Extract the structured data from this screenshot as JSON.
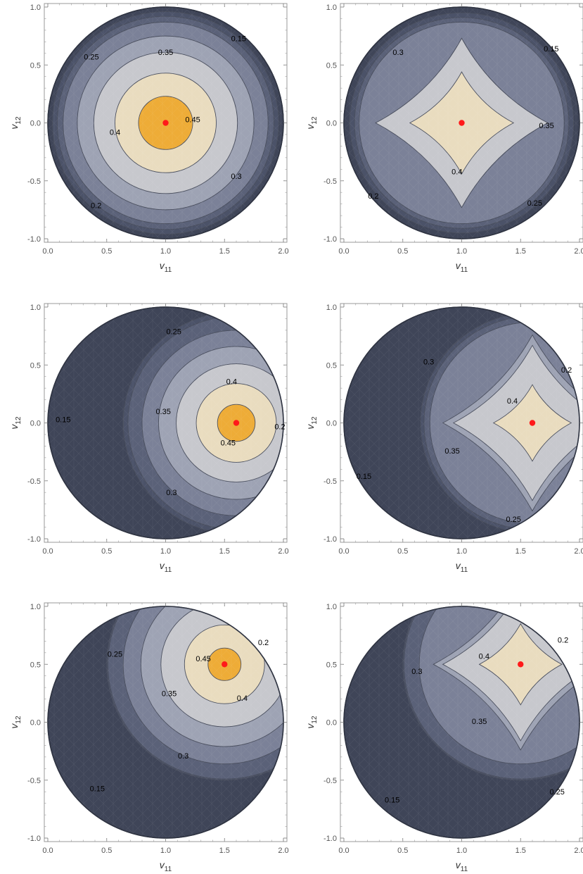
{
  "chart_data": [
    {
      "type": "contour",
      "panel": "top-left",
      "shape": "round",
      "xlabel": "v11",
      "ylabel": "v12",
      "xlim": [
        0,
        2
      ],
      "ylim": [
        -1,
        1
      ],
      "xticks": [
        "0.0",
        "0.5",
        "1.0",
        "1.5",
        "2.0"
      ],
      "yticks": [
        "-1.0",
        "-0.5",
        "0.0",
        "0.5",
        "1.0"
      ],
      "peak": {
        "x": 1.0,
        "y": 0.0
      },
      "levels": [
        {
          "value": 0.15,
          "label": "0.15",
          "r": 0.96,
          "lx": 1.62,
          "ly": 0.73
        },
        {
          "value": 0.2,
          "label": "0.2",
          "r": 0.92,
          "lx": 0.41,
          "ly": -0.71
        },
        {
          "value": 0.25,
          "label": "0.25",
          "r": 0.87,
          "lx": 0.37,
          "ly": 0.57
        },
        {
          "value": 0.3,
          "label": "0.3",
          "r": 0.75,
          "lx": 1.6,
          "ly": -0.46
        },
        {
          "value": 0.35,
          "label": "0.35",
          "r": 0.61,
          "lx": 1.0,
          "ly": 0.61
        },
        {
          "value": 0.4,
          "label": "0.4",
          "r": 0.43,
          "lx": 0.57,
          "ly": -0.08
        },
        {
          "value": 0.45,
          "label": "0.45",
          "r": 0.23,
          "lx": 1.23,
          "ly": 0.03
        }
      ]
    },
    {
      "type": "contour",
      "panel": "top-right",
      "shape": "diamond",
      "xlabel": "v11",
      "ylabel": "v12",
      "xlim": [
        0,
        2
      ],
      "ylim": [
        -1,
        1
      ],
      "xticks": [
        "0.0",
        "0.5",
        "1.0",
        "1.5",
        "2.0"
      ],
      "yticks": [
        "-1.0",
        "-0.5",
        "0.0",
        "0.5",
        "1.0"
      ],
      "peak": {
        "x": 1.0,
        "y": 0.0
      },
      "levels": [
        {
          "value": 0.15,
          "label": "0.15",
          "r": 0.95,
          "lx": 1.76,
          "ly": 0.64
        },
        {
          "value": 0.2,
          "label": "0.2",
          "r": 0.91,
          "lx": 0.25,
          "ly": -0.63
        },
        {
          "value": 0.25,
          "label": "0.25",
          "r": 0.87,
          "lx": 1.62,
          "ly": -0.69
        },
        {
          "value": 0.3,
          "label": "0.3",
          "r": 0.73,
          "lx": 0.46,
          "ly": 0.61
        },
        {
          "value": 0.35,
          "label": "0.35",
          "r": 0.73,
          "lx": 1.72,
          "ly": -0.02
        },
        {
          "value": 0.4,
          "label": "0.4",
          "r": 0.44,
          "lx": 0.96,
          "ly": -0.42
        }
      ]
    },
    {
      "type": "contour",
      "panel": "middle-left",
      "shape": "round",
      "xlabel": "v11",
      "ylabel": "v12",
      "xlim": [
        0,
        2
      ],
      "ylim": [
        -1,
        1
      ],
      "xticks": [
        "0.0",
        "0.5",
        "1.0",
        "1.5",
        "2.0"
      ],
      "yticks": [
        "-1.0",
        "-0.5",
        "0.0",
        "0.5",
        "1.0"
      ],
      "peak": {
        "x": 1.6,
        "y": 0.0
      },
      "levels": [
        {
          "value": 0.15,
          "label": "0.15",
          "r": 0.96,
          "lx": 0.13,
          "ly": 0.03
        },
        {
          "value": 0.2,
          "label": "0.2",
          "r": 0.92,
          "lx": 1.97,
          "ly": -0.03
        },
        {
          "value": 0.25,
          "label": "0.25",
          "r": 0.8,
          "lx": 1.07,
          "ly": 0.79
        },
        {
          "value": 0.3,
          "label": "0.3",
          "r": 0.66,
          "lx": 1.05,
          "ly": -0.6
        },
        {
          "value": 0.35,
          "label": "0.35",
          "r": 0.51,
          "lx": 0.98,
          "ly": 0.1
        },
        {
          "value": 0.4,
          "label": "0.4",
          "r": 0.34,
          "lx": 1.56,
          "ly": 0.36
        },
        {
          "value": 0.45,
          "label": "0.45",
          "r": 0.16,
          "lx": 1.53,
          "ly": -0.17
        }
      ]
    },
    {
      "type": "contour",
      "panel": "middle-right",
      "shape": "diamond",
      "xlabel": "v11",
      "ylabel": "v12",
      "xlim": [
        0,
        2
      ],
      "ylim": [
        -1,
        1
      ],
      "xticks": [
        "0.0",
        "0.5",
        "1.0",
        "1.5",
        "2.0"
      ],
      "yticks": [
        "-1.0",
        "-0.5",
        "0.0",
        "0.5",
        "1.0"
      ],
      "peak": {
        "x": 1.6,
        "y": 0.0
      },
      "levels": [
        {
          "value": 0.15,
          "label": "0.15",
          "r": 0.95,
          "lx": 0.17,
          "ly": -0.46
        },
        {
          "value": 0.2,
          "label": "0.2",
          "r": 0.92,
          "lx": 1.89,
          "ly": 0.46
        },
        {
          "value": 0.25,
          "label": "0.25",
          "r": 0.87,
          "lx": 1.44,
          "ly": -0.83
        },
        {
          "value": 0.3,
          "label": "0.3",
          "r": 0.76,
          "lx": 0.72,
          "ly": 0.53
        },
        {
          "value": 0.35,
          "label": "0.35",
          "r": 0.67,
          "lx": 0.92,
          "ly": -0.24
        },
        {
          "value": 0.4,
          "label": "0.4",
          "r": 0.33,
          "lx": 1.43,
          "ly": 0.19
        }
      ]
    },
    {
      "type": "contour",
      "panel": "bottom-left",
      "shape": "round",
      "xlabel": "v11",
      "ylabel": "v12",
      "xlim": [
        0,
        2
      ],
      "ylim": [
        -1,
        1
      ],
      "xticks": [
        "0.0",
        "0.5",
        "1.0",
        "1.5",
        "2.0"
      ],
      "yticks": [
        "-1.0",
        "-0.5",
        "0.0",
        "0.5",
        "1.0"
      ],
      "peak": {
        "x": 1.5,
        "y": 0.5
      },
      "levels": [
        {
          "value": 0.15,
          "label": "0.15",
          "r": 1.0,
          "lx": 0.42,
          "ly": -0.57
        },
        {
          "value": 0.2,
          "label": "0.2",
          "r": 0.99,
          "lx": 1.83,
          "ly": 0.69
        },
        {
          "value": 0.25,
          "label": "0.25",
          "r": 0.86,
          "lx": 0.57,
          "ly": 0.59
        },
        {
          "value": 0.3,
          "label": "0.3",
          "r": 0.71,
          "lx": 1.15,
          "ly": -0.29
        },
        {
          "value": 0.35,
          "label": "0.35",
          "r": 0.54,
          "lx": 1.03,
          "ly": 0.25
        },
        {
          "value": 0.4,
          "label": "0.4",
          "r": 0.34,
          "lx": 1.65,
          "ly": 0.21
        },
        {
          "value": 0.45,
          "label": "0.45",
          "r": 0.14,
          "lx": 1.32,
          "ly": 0.55
        }
      ]
    },
    {
      "type": "contour",
      "panel": "bottom-right",
      "shape": "diamond",
      "xlabel": "v11",
      "ylabel": "v12",
      "xlim": [
        0,
        2
      ],
      "ylim": [
        -1,
        1
      ],
      "xticks": [
        "0.0",
        "0.5",
        "1.0",
        "1.5",
        "2.0"
      ],
      "yticks": [
        "-1.0",
        "-0.5",
        "0.0",
        "0.5",
        "1.0"
      ],
      "peak": {
        "x": 1.5,
        "y": 0.5
      },
      "levels": [
        {
          "value": 0.15,
          "label": "0.15",
          "r": 1.0,
          "lx": 0.41,
          "ly": -0.67
        },
        {
          "value": 0.2,
          "label": "0.2",
          "r": 0.99,
          "lx": 1.86,
          "ly": 0.71
        },
        {
          "value": 0.25,
          "label": "0.25",
          "r": 0.86,
          "lx": 1.81,
          "ly": -0.6
        },
        {
          "value": 0.3,
          "label": "0.3",
          "r": 0.74,
          "lx": 0.62,
          "ly": 0.44
        },
        {
          "value": 0.35,
          "label": "0.35",
          "r": 0.66,
          "lx": 1.15,
          "ly": 0.01
        },
        {
          "value": 0.4,
          "label": "0.4",
          "r": 0.35,
          "lx": 1.19,
          "ly": 0.57
        }
      ]
    }
  ],
  "colors": {
    "frame": "#9a9a9a",
    "edge": "#2f3442",
    "line": "#4a4f5e",
    "level_fills": [
      "#3f4558",
      "#4b5268",
      "#5a6178",
      "#7b8198",
      "#9ea3b4",
      "#c7c8cd",
      "#e9dcbf",
      "#eeac37"
    ],
    "diamond_peak_fill": "#e9dcbf",
    "peak_dot": "#ff1a1a"
  },
  "axis_text": {
    "x_base": "v",
    "x_sub": "11",
    "y_base": "v",
    "y_sub": "12"
  }
}
